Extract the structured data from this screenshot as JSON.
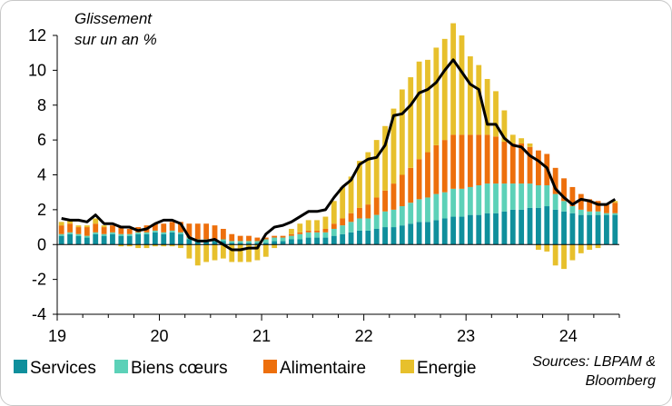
{
  "chart_data": {
    "type": "bar",
    "ylabel_line1": "Glissement",
    "ylabel_line2": "sur un an %",
    "ylim": [
      -4,
      12
    ],
    "yticks": [
      12,
      10,
      8,
      6,
      4,
      2,
      0,
      -2,
      -4
    ],
    "xticks": [
      {
        "label": "19",
        "index": 0
      },
      {
        "label": "20",
        "index": 12
      },
      {
        "label": "21",
        "index": 24
      },
      {
        "label": "22",
        "index": 36
      },
      {
        "label": "23",
        "index": 48
      },
      {
        "label": "24",
        "index": 60
      }
    ],
    "months": 66,
    "series": [
      {
        "name": "Services",
        "color": "#0f8f9c",
        "values": [
          0.5,
          0.6,
          0.5,
          0.4,
          0.6,
          0.5,
          0.6,
          0.5,
          0.5,
          0.6,
          0.6,
          0.7,
          0.6,
          0.7,
          0.6,
          0.3,
          0.2,
          0.2,
          0.2,
          0.2,
          0.1,
          0.1,
          0.1,
          0.1,
          0.1,
          0.2,
          0.2,
          0.3,
          0.3,
          0.4,
          0.4,
          0.4,
          0.5,
          0.6,
          0.7,
          0.8,
          0.8,
          0.9,
          1.0,
          1.0,
          1.1,
          1.2,
          1.3,
          1.3,
          1.4,
          1.5,
          1.6,
          1.6,
          1.7,
          1.7,
          1.8,
          1.8,
          1.9,
          2.0,
          2.0,
          2.1,
          2.1,
          2.2,
          2.0,
          1.9,
          1.8,
          1.7,
          1.7,
          1.7,
          1.7,
          1.7
        ]
      },
      {
        "name": "Biens cœurs",
        "color": "#5cd1b8",
        "values": [
          0.1,
          0.1,
          0.1,
          0.1,
          0.1,
          0.1,
          0.1,
          0.1,
          0.1,
          0.1,
          0.1,
          0.1,
          0.1,
          0.1,
          0.1,
          0.1,
          0.1,
          0.1,
          0.1,
          0.1,
          0.1,
          0.1,
          0.1,
          0.1,
          0.2,
          0.2,
          0.2,
          0.2,
          0.3,
          0.3,
          0.3,
          0.3,
          0.4,
          0.5,
          0.6,
          0.7,
          0.7,
          0.8,
          0.9,
          1.0,
          1.1,
          1.2,
          1.3,
          1.4,
          1.5,
          1.5,
          1.6,
          1.6,
          1.6,
          1.7,
          1.7,
          1.7,
          1.6,
          1.5,
          1.5,
          1.4,
          1.3,
          1.2,
          0.9,
          0.6,
          0.4,
          0.3,
          0.2,
          0.2,
          0.1,
          0.1
        ]
      },
      {
        "name": "Alimentaire",
        "color": "#ed6f0c",
        "values": [
          0.5,
          0.5,
          0.4,
          0.5,
          0.5,
          0.4,
          0.4,
          0.4,
          0.3,
          0.3,
          0.4,
          0.4,
          0.5,
          0.5,
          0.6,
          0.8,
          0.9,
          0.9,
          0.8,
          0.6,
          0.4,
          0.3,
          0.3,
          0.2,
          0.1,
          0.1,
          0.1,
          0.1,
          0.1,
          0.1,
          0.1,
          0.2,
          0.3,
          0.4,
          0.5,
          0.6,
          0.8,
          1.0,
          1.2,
          1.5,
          1.8,
          2.0,
          2.3,
          2.6,
          2.8,
          3.0,
          3.1,
          3.1,
          3.0,
          2.9,
          2.8,
          2.7,
          2.4,
          2.3,
          2.3,
          2.1,
          2.0,
          1.8,
          1.5,
          1.3,
          1.1,
          0.9,
          0.7,
          0.6,
          0.5,
          0.6
        ]
      },
      {
        "name": "Energie",
        "color": "#e7c02c",
        "values": [
          0.2,
          0.2,
          0.1,
          0.1,
          0.3,
          0.1,
          0.0,
          -0.1,
          -0.1,
          -0.2,
          -0.2,
          -0.1,
          -0.1,
          -0.1,
          -0.2,
          -0.8,
          -1.2,
          -1.0,
          -0.9,
          -0.8,
          -1.0,
          -1.0,
          -1.0,
          -0.9,
          -0.7,
          -0.2,
          0.0,
          0.3,
          0.5,
          0.6,
          0.6,
          0.7,
          1.3,
          1.8,
          2.1,
          2.7,
          3.0,
          3.3,
          3.7,
          4.3,
          4.9,
          5.2,
          5.6,
          5.3,
          5.6,
          5.8,
          6.4,
          5.7,
          4.5,
          4.0,
          3.2,
          2.6,
          1.8,
          0.5,
          0.3,
          0.2,
          -0.3,
          -0.4,
          -1.2,
          -1.4,
          -0.9,
          -0.5,
          -0.3,
          -0.2,
          0.0,
          0.1
        ]
      },
      {
        "name": "Total",
        "color": "#000000",
        "values": [
          1.5,
          1.4,
          1.4,
          1.3,
          1.7,
          1.2,
          1.2,
          1.0,
          1.0,
          0.8,
          0.9,
          1.2,
          1.4,
          1.4,
          1.2,
          0.4,
          0.2,
          0.2,
          0.3,
          0.0,
          -0.3,
          -0.3,
          -0.2,
          -0.2,
          0.6,
          1.0,
          1.1,
          1.3,
          1.6,
          1.9,
          1.9,
          2.0,
          2.7,
          3.3,
          3.7,
          4.6,
          4.9,
          5.0,
          5.7,
          7.4,
          7.5,
          8.0,
          8.7,
          8.9,
          9.3,
          10.0,
          10.6,
          9.9,
          9.2,
          8.9,
          6.9,
          6.9,
          6.1,
          5.7,
          5.6,
          5.1,
          4.8,
          4.4,
          3.2,
          2.7,
          2.3,
          2.6,
          2.5,
          2.3,
          2.3,
          2.6
        ]
      }
    ],
    "legend": [
      {
        "label": "Services",
        "color": "#0f8f9c"
      },
      {
        "label": "Biens cœurs",
        "color": "#5cd1b8"
      },
      {
        "label": "Alimentaire",
        "color": "#ed6f0c"
      },
      {
        "label": "Energie",
        "color": "#e7c02c"
      }
    ],
    "source_line1": "Sources: LBPAM &",
    "source_line2": "Bloomberg"
  }
}
